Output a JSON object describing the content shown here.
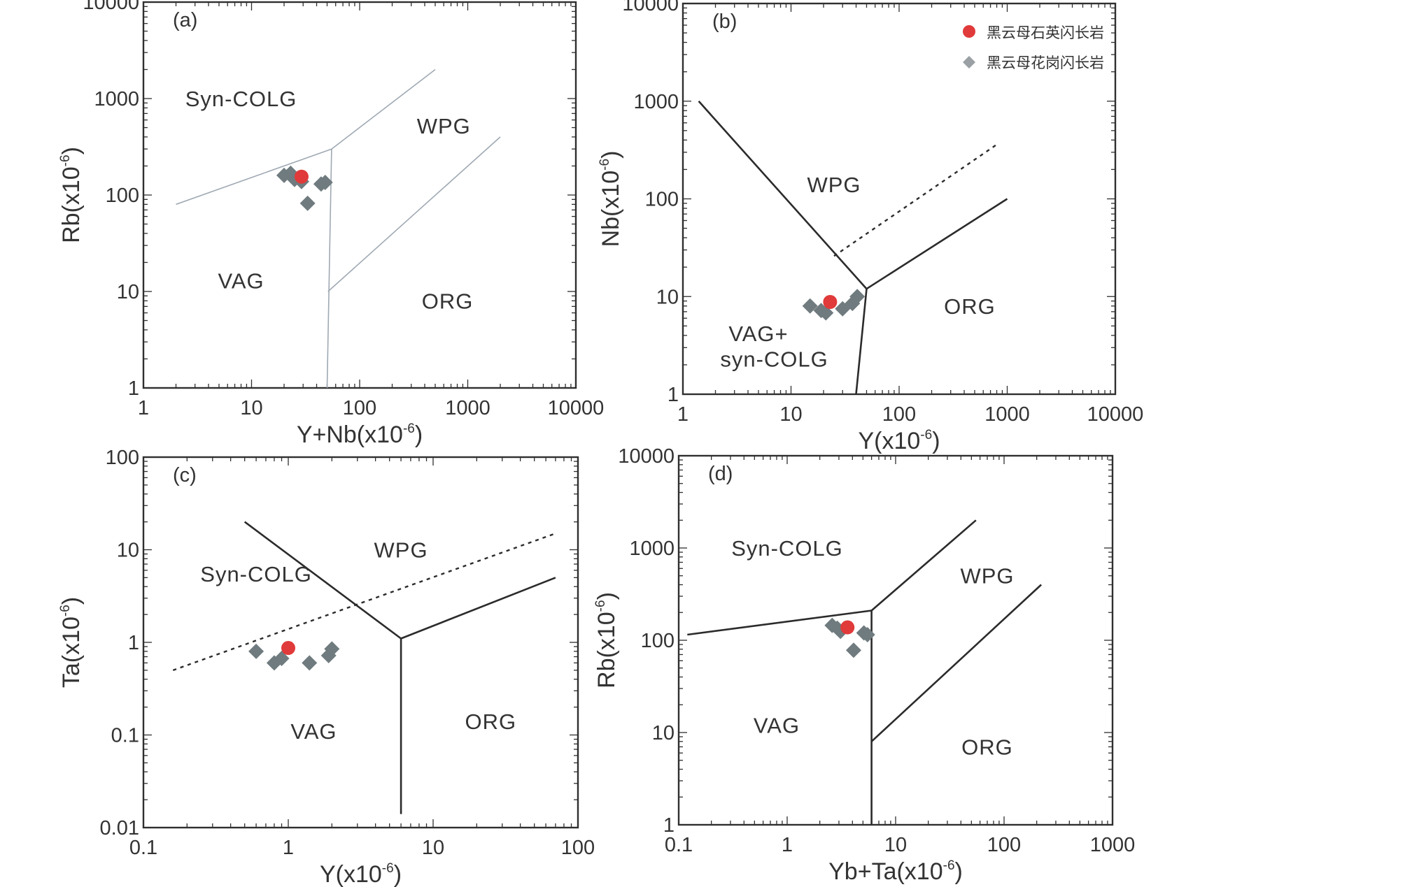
{
  "figure": {
    "legend": {
      "items": [
        {
          "label": "黑云母石英闪长岩",
          "marker": "circle",
          "color": "#e03a3a"
        },
        {
          "label": "黑云母花岗闪长岩",
          "marker": "diamond",
          "color": "#9aa0a4"
        }
      ]
    }
  },
  "chart_data": [
    {
      "id": "a",
      "type": "scatter",
      "panel_label": "(a)",
      "xscale": "log",
      "yscale": "log",
      "xlim": [
        1,
        10000
      ],
      "ylim": [
        1,
        10000
      ],
      "xticks": [
        1,
        10,
        100,
        1000,
        10000
      ],
      "yticks": [
        1,
        10,
        100,
        1000,
        10000
      ],
      "tick_labels_x": [
        "1",
        "10",
        "100",
        "1000",
        "10000"
      ],
      "tick_labels_y": [
        "1",
        "10",
        "100",
        "1000",
        "10000"
      ],
      "xlabel": "Y+Nb(x10",
      "xlabel_sup": "-6",
      "xlabel_end": ")",
      "ylabel": "Rb(x10",
      "ylabel_sup": "-6",
      "ylabel_end": ")",
      "regions": [
        {
          "label": "Syn-COLG",
          "x": 8,
          "y": 1000
        },
        {
          "label": "WPG",
          "x": 600,
          "y": 520
        },
        {
          "label": "VAG",
          "x": 8,
          "y": 13
        },
        {
          "label": "ORG",
          "x": 650,
          "y": 8
        }
      ],
      "boundaries": [
        {
          "style": "thin",
          "points": [
            [
              2,
              80
            ],
            [
              55,
              300
            ]
          ]
        },
        {
          "style": "thin",
          "points": [
            [
              55,
              300
            ],
            [
              500,
              2000
            ]
          ]
        },
        {
          "style": "thin",
          "points": [
            [
              55,
              300
            ],
            [
              50,
              1
            ]
          ]
        },
        {
          "style": "thin",
          "points": [
            [
              51,
              10
            ],
            [
              2000,
              400
            ]
          ]
        }
      ],
      "series": [
        {
          "name": "黑云母花岗闪长岩",
          "marker": "diamond",
          "points": [
            [
              20,
              160
            ],
            [
              23,
              168
            ],
            [
              25,
              145
            ],
            [
              29,
              138
            ],
            [
              33,
              82
            ],
            [
              44,
              130
            ],
            [
              48,
              135
            ]
          ]
        },
        {
          "name": "黑云母石英闪长岩",
          "marker": "circle",
          "points": [
            [
              29,
              155
            ]
          ]
        }
      ]
    },
    {
      "id": "b",
      "type": "scatter",
      "panel_label": "(b)",
      "xscale": "log",
      "yscale": "log",
      "xlim": [
        1,
        10000
      ],
      "ylim": [
        1,
        10000
      ],
      "xticks": [
        1,
        10,
        100,
        1000,
        10000
      ],
      "yticks": [
        1,
        10,
        100,
        1000,
        10000
      ],
      "tick_labels_x": [
        "1",
        "10",
        "100",
        "1000",
        "10000"
      ],
      "tick_labels_y": [
        "1",
        "10",
        "100",
        "1000",
        "10000"
      ],
      "xlabel": "Y(x10",
      "xlabel_sup": "-6",
      "xlabel_end": ")",
      "ylabel": "Nb(x10",
      "ylabel_sup": "-6",
      "ylabel_end": ")",
      "regions": [
        {
          "label": "WPG",
          "x": 25,
          "y": 140
        },
        {
          "label": "ORG",
          "x": 450,
          "y": 8
        },
        {
          "label": "VAG+",
          "x": 5,
          "y": 4.2
        },
        {
          "label": "syn-COLG",
          "x": 7,
          "y": 2.3
        }
      ],
      "boundaries": [
        {
          "style": "solid",
          "points": [
            [
              1.4,
              1000
            ],
            [
              50,
              12
            ]
          ]
        },
        {
          "style": "solid",
          "points": [
            [
              50,
              12
            ],
            [
              1000,
              100
            ]
          ]
        },
        {
          "style": "solid",
          "points": [
            [
              50,
              12
            ],
            [
              40,
              1
            ]
          ]
        },
        {
          "style": "dotted",
          "points": [
            [
              25,
              26
            ],
            [
              800,
              360
            ]
          ]
        }
      ],
      "series": [
        {
          "name": "黑云母花岗闪长岩",
          "marker": "diamond",
          "points": [
            [
              15,
              8
            ],
            [
              19,
              7.2
            ],
            [
              21,
              6.8
            ],
            [
              30,
              7.5
            ],
            [
              37,
              8.5
            ],
            [
              41,
              10
            ]
          ]
        },
        {
          "name": "黑云母石英闪长岩",
          "marker": "circle",
          "points": [
            [
              23,
              8.8
            ]
          ]
        }
      ]
    },
    {
      "id": "c",
      "type": "scatter",
      "panel_label": "(c)",
      "xscale": "log",
      "yscale": "log",
      "xlim": [
        0.1,
        100
      ],
      "ylim": [
        0.01,
        100
      ],
      "xticks": [
        0.1,
        1,
        10,
        100
      ],
      "yticks": [
        0.01,
        0.1,
        1,
        10,
        100
      ],
      "tick_labels_x": [
        "0.1",
        "1",
        "10",
        "100"
      ],
      "tick_labels_y": [
        "0.01",
        "0.1",
        "1",
        "10",
        "100"
      ],
      "xlabel": "Y(x10",
      "xlabel_sup": "-6",
      "xlabel_end": ")",
      "ylabel": "Ta(x10",
      "ylabel_sup": "-6",
      "ylabel_end": ")",
      "regions": [
        {
          "label": "WPG",
          "x": 6,
          "y": 10
        },
        {
          "label": "Syn-COLG",
          "x": 0.6,
          "y": 5.5
        },
        {
          "label": "VAG",
          "x": 1.5,
          "y": 0.11
        },
        {
          "label": "ORG",
          "x": 25,
          "y": 0.14
        }
      ],
      "boundaries": [
        {
          "style": "solid",
          "points": [
            [
              0.5,
              20
            ],
            [
              6,
              1.1
            ]
          ]
        },
        {
          "style": "solid",
          "points": [
            [
              6,
              1.1
            ],
            [
              70,
              5
            ]
          ]
        },
        {
          "style": "solid",
          "points": [
            [
              6,
              1.1
            ],
            [
              6,
              0.014
            ]
          ]
        },
        {
          "style": "dotted",
          "points": [
            [
              0.16,
              0.5
            ],
            [
              70,
              15
            ]
          ]
        }
      ],
      "series": [
        {
          "name": "黑云母花岗闪长岩",
          "marker": "diamond",
          "points": [
            [
              0.6,
              0.8
            ],
            [
              0.8,
              0.6
            ],
            [
              0.9,
              0.67
            ],
            [
              1.4,
              0.6
            ],
            [
              1.9,
              0.72
            ],
            [
              2,
              0.85
            ]
          ]
        },
        {
          "name": "黑云母石英闪长岩",
          "marker": "circle",
          "points": [
            [
              1,
              0.87
            ]
          ]
        }
      ]
    },
    {
      "id": "d",
      "type": "scatter",
      "panel_label": "(d)",
      "xscale": "log",
      "yscale": "log",
      "xlim": [
        0.1,
        1000
      ],
      "ylim": [
        1,
        10000
      ],
      "xticks": [
        0.1,
        1,
        10,
        100,
        1000
      ],
      "yticks": [
        1,
        10,
        100,
        1000,
        10000
      ],
      "tick_labels_x": [
        "0.1",
        "1",
        "10",
        "100",
        "1000"
      ],
      "tick_labels_y": [
        "1",
        "10",
        "100",
        "1000",
        "10000"
      ],
      "xlabel": "Yb+Ta(x10",
      "xlabel_sup": "-6",
      "xlabel_end": ")",
      "ylabel": "Rb(x10",
      "ylabel_sup": "-6",
      "ylabel_end": ")",
      "regions": [
        {
          "label": "Syn-COLG",
          "x": 1,
          "y": 1000
        },
        {
          "label": "WPG",
          "x": 70,
          "y": 500
        },
        {
          "label": "VAG",
          "x": 0.8,
          "y": 12
        },
        {
          "label": "ORG",
          "x": 70,
          "y": 7
        }
      ],
      "boundaries": [
        {
          "style": "solid",
          "points": [
            [
              0.12,
              115
            ],
            [
              6,
              210
            ]
          ]
        },
        {
          "style": "solid",
          "points": [
            [
              6,
              210
            ],
            [
              55,
              2000
            ]
          ]
        },
        {
          "style": "solid",
          "points": [
            [
              6,
              210
            ],
            [
              6,
              1
            ]
          ]
        },
        {
          "style": "solid",
          "points": [
            [
              6,
              8
            ],
            [
              220,
              400
            ]
          ]
        }
      ],
      "series": [
        {
          "name": "黑云母花岗闪长岩",
          "marker": "diamond",
          "points": [
            [
              2.6,
              145
            ],
            [
              2.9,
              135
            ],
            [
              3.1,
              125
            ],
            [
              4.1,
              78
            ],
            [
              5.1,
              120
            ],
            [
              5.5,
              115
            ]
          ]
        },
        {
          "name": "黑云母石英闪长岩",
          "marker": "circle",
          "points": [
            [
              3.6,
              138
            ]
          ]
        }
      ]
    }
  ]
}
